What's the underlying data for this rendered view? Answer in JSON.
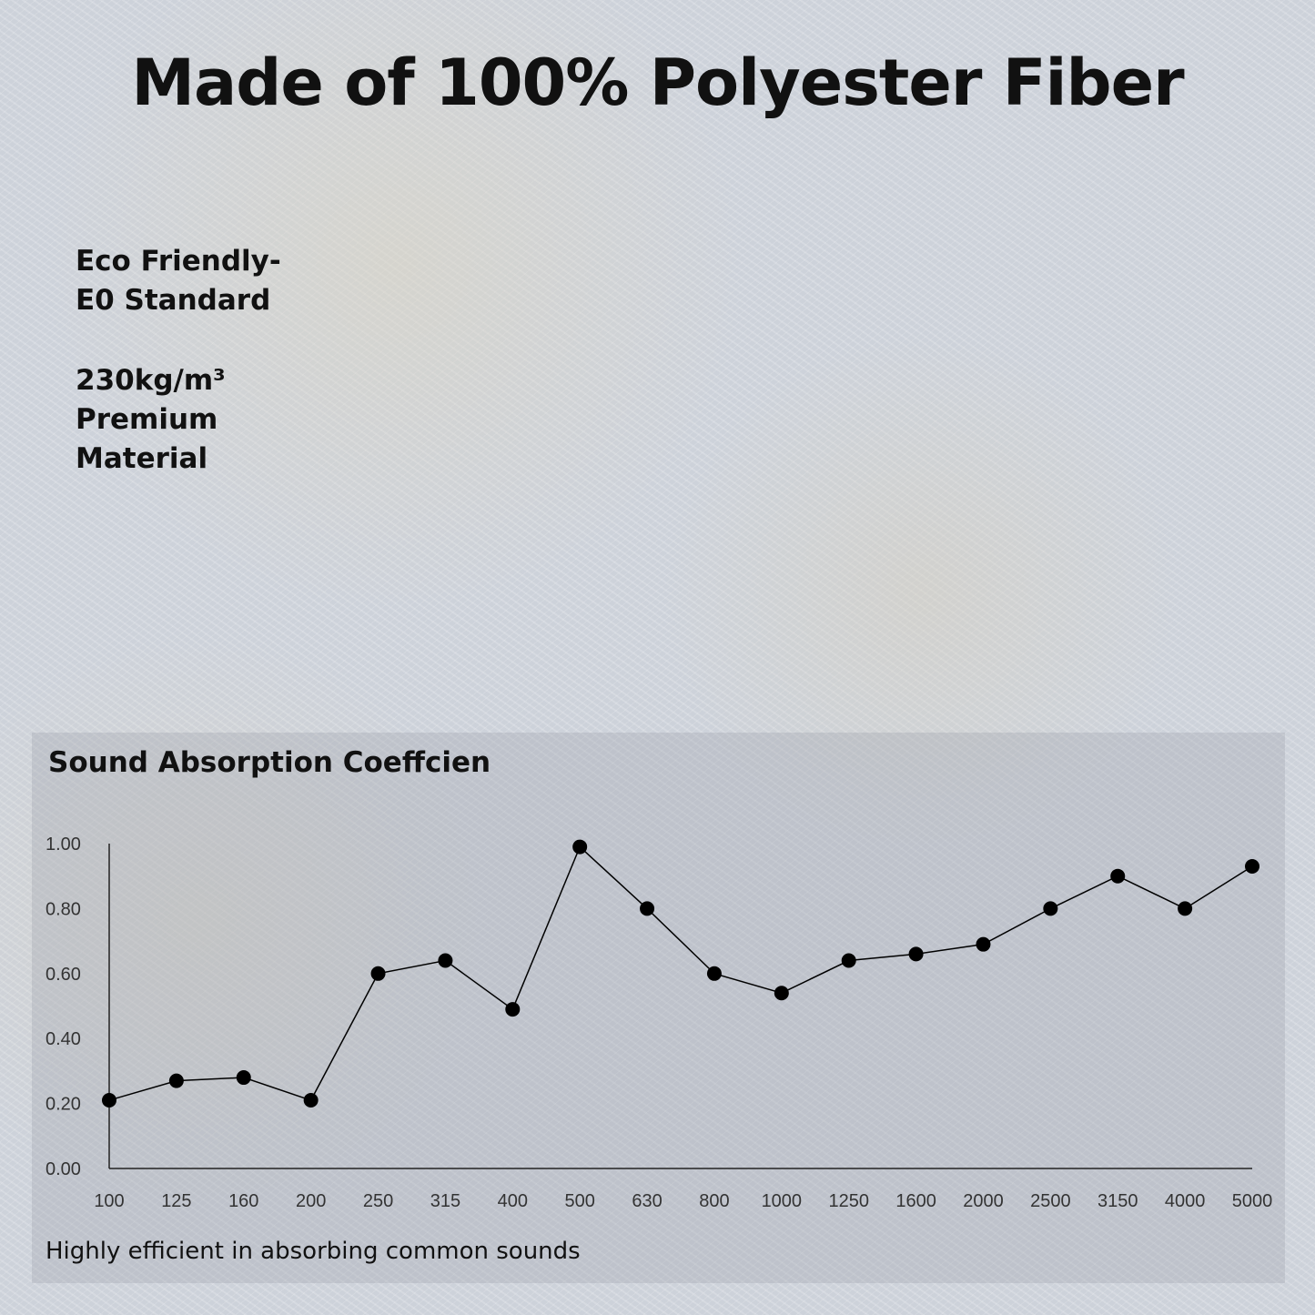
{
  "title": "Made of 100% Polyester Fiber",
  "features": [
    "Eco Friendly-\nE0 Standard",
    "230kg/m³\nPremium\nMaterial"
  ],
  "caption": "Highly efficient in absorbing common sounds",
  "chart_data": {
    "type": "line",
    "title": "Sound Absorption Coeffcien",
    "xlabel": "",
    "ylabel": "",
    "categories": [
      "100",
      "125",
      "160",
      "200",
      "250",
      "315",
      "400",
      "500",
      "630",
      "800",
      "1000",
      "1250",
      "1600",
      "2000",
      "2500",
      "3150",
      "4000",
      "5000"
    ],
    "values": [
      0.21,
      0.27,
      0.28,
      0.21,
      0.6,
      0.64,
      0.49,
      0.99,
      0.8,
      0.6,
      0.54,
      0.64,
      0.66,
      0.69,
      0.8,
      0.9,
      0.8,
      0.93
    ],
    "yticks": [
      "0.00",
      "0.20",
      "0.40",
      "0.60",
      "0.80",
      "1.00"
    ],
    "ylim": [
      0,
      1
    ],
    "grid": false,
    "marker": "filled-circle",
    "color": "#000000"
  }
}
